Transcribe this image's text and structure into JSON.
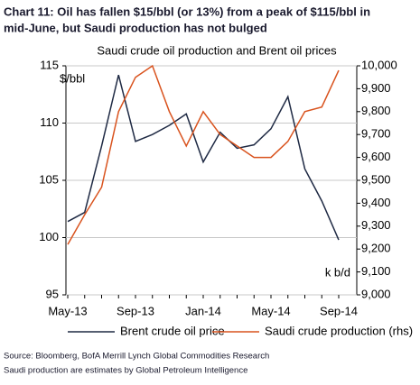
{
  "chart_data": {
    "type": "line",
    "title": "Chart 11: Oil has fallen $15/bbl (or 13%) from a peak of $115/bbl in",
    "title_line2": "mid-June, but Saudi production has not bulged",
    "subtitle": "Saudi crude oil production and Brent oil prices",
    "y_label": "$/bbl",
    "y2_label": "k b/d",
    "categories": [
      "May-13",
      null,
      null,
      null,
      "Sep-13",
      null,
      null,
      null,
      "Jan-14",
      null,
      null,
      null,
      "May-14",
      null,
      null,
      null,
      "Sep-14"
    ],
    "series": [
      {
        "name": "Brent crude oil price",
        "color": "#1f2a44",
        "values": [
          101.4,
          102.2,
          108,
          114.2,
          108.4,
          109,
          109.8,
          110.8,
          106.6,
          109.2,
          107.8,
          108.1,
          109.5,
          112.3,
          106,
          103.2,
          99.8
        ]
      },
      {
        "name": "Saudi crude production (rhs)",
        "color": "#d9531e",
        "axis": "y2",
        "values": [
          9220,
          9350,
          9470,
          9800,
          9950,
          10000,
          9800,
          9650,
          9800,
          9700,
          9650,
          9600,
          9600,
          9670,
          9800,
          9820,
          9980
        ]
      }
    ],
    "ylim": [
      95,
      115
    ],
    "yticks": [
      95,
      100,
      105,
      110,
      115
    ],
    "y2lim": [
      9000,
      10000
    ],
    "y2ticks": [
      {
        "value": 9000,
        "label": "9,000"
      },
      {
        "value": 9100,
        "label": "9,100"
      },
      {
        "value": 9200,
        "label": "9,200"
      },
      {
        "value": 9300,
        "label": "9,300"
      },
      {
        "value": 9400,
        "label": "9,400"
      },
      {
        "value": 9500,
        "label": "9,500"
      },
      {
        "value": 9600,
        "label": "9,600"
      },
      {
        "value": 9700,
        "label": "9,700"
      },
      {
        "value": 9800,
        "label": "9,800"
      },
      {
        "value": 9900,
        "label": "9,900"
      },
      {
        "value": 10000,
        "label": "10,000"
      }
    ],
    "grid": true,
    "source": [
      "Source: Bloomberg, BofA Merrill Lynch Global Commodities Research",
      "Saudi production are estimates by Global Petroleum Intelligence"
    ]
  }
}
